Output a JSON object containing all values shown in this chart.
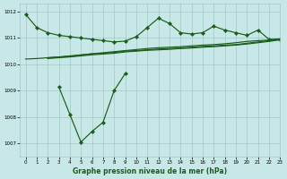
{
  "bg_color": "#c8e8e8",
  "grid_color": "#a0c8c8",
  "line_color": "#1a5c1a",
  "xlabel": "Graphe pression niveau de la mer (hPa)",
  "ylim": [
    1006.5,
    1012.3
  ],
  "xlim": [
    -0.5,
    23
  ],
  "yticks": [
    1007,
    1008,
    1009,
    1010,
    1011,
    1012
  ],
  "xticks": [
    0,
    1,
    2,
    3,
    4,
    5,
    6,
    7,
    8,
    9,
    10,
    11,
    12,
    13,
    14,
    15,
    16,
    17,
    18,
    19,
    20,
    21,
    22,
    23
  ],
  "line1_x": [
    0,
    1,
    2,
    3,
    4,
    5,
    6,
    7,
    8,
    9,
    10,
    11,
    12,
    13,
    14,
    15,
    16,
    17,
    18,
    19,
    20,
    21,
    22,
    23
  ],
  "line1_y": [
    1011.9,
    1011.4,
    1011.2,
    1011.1,
    1011.05,
    1011.0,
    1010.95,
    1010.9,
    1010.85,
    1010.88,
    1011.05,
    1011.4,
    1011.75,
    1011.55,
    1011.2,
    1011.15,
    1011.2,
    1011.45,
    1011.3,
    1011.2,
    1011.1,
    1011.3,
    1010.95,
    1010.95
  ],
  "line2_x": [
    2,
    3,
    4,
    5,
    6,
    7,
    8,
    9,
    10,
    11,
    12,
    13,
    14,
    15,
    16,
    17,
    18,
    19,
    20,
    21,
    22,
    23
  ],
  "line2_y": [
    1010.25,
    1010.28,
    1010.3,
    1010.35,
    1010.4,
    1010.42,
    1010.45,
    1010.5,
    1010.52,
    1010.55,
    1010.58,
    1010.6,
    1010.62,
    1010.65,
    1010.68,
    1010.7,
    1010.73,
    1010.75,
    1010.8,
    1010.85,
    1010.9,
    1010.95
  ],
  "line3_x": [
    2,
    3,
    4,
    5,
    6,
    7,
    8,
    9,
    10,
    11,
    12,
    13,
    14,
    15,
    16,
    17,
    18,
    19,
    20,
    21,
    22,
    23
  ],
  "line3_y": [
    1010.22,
    1010.25,
    1010.28,
    1010.32,
    1010.36,
    1010.39,
    1010.42,
    1010.47,
    1010.5,
    1010.53,
    1010.55,
    1010.57,
    1010.6,
    1010.62,
    1010.65,
    1010.67,
    1010.7,
    1010.73,
    1010.77,
    1010.82,
    1010.87,
    1010.93
  ],
  "line4_x": [
    0,
    1,
    2,
    3,
    4,
    5,
    6,
    7,
    8,
    9,
    10,
    11,
    12,
    13,
    14,
    15,
    16,
    17,
    18,
    19,
    20,
    21,
    22,
    23
  ],
  "line4_y": [
    1010.2,
    1010.22,
    1010.25,
    1010.28,
    1010.32,
    1010.36,
    1010.4,
    1010.44,
    1010.48,
    1010.52,
    1010.56,
    1010.6,
    1010.63,
    1010.65,
    1010.67,
    1010.7,
    1010.73,
    1010.75,
    1010.78,
    1010.82,
    1010.87,
    1010.9,
    1010.92,
    1010.97
  ],
  "line5_x": [
    3,
    4,
    5,
    6,
    7,
    8,
    9
  ],
  "line5_y": [
    1009.15,
    1008.1,
    1007.05,
    1007.45,
    1007.8,
    1009.0,
    1009.65
  ]
}
